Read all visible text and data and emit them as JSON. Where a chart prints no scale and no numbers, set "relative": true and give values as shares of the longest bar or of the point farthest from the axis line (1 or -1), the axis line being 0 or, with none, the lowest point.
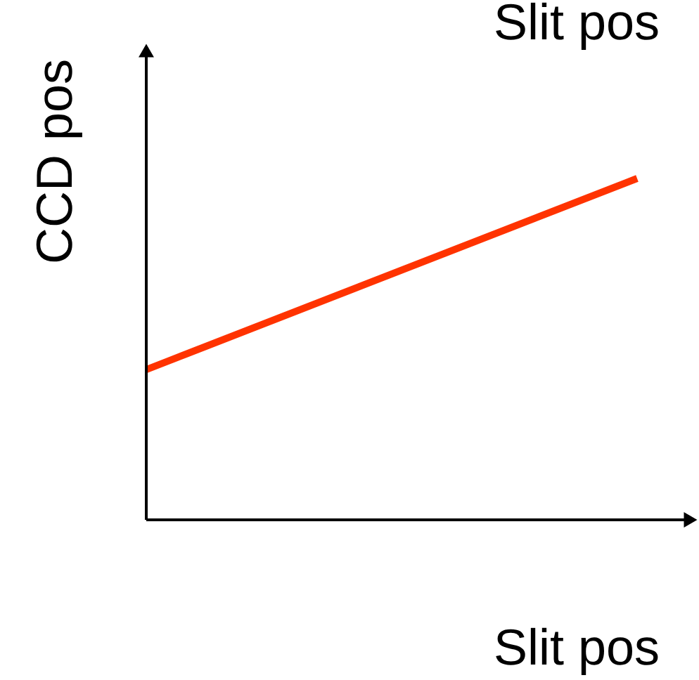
{
  "chart_data": {
    "type": "line",
    "relative": true,
    "xlabel": "Slit pos",
    "ylabel": "CCD pos",
    "annotations": [
      "Slit pos"
    ],
    "categories": [
      null,
      null
    ],
    "series": [
      {
        "color": "#ff3300",
        "values": [
          0.44,
          1
        ]
      }
    ]
  }
}
